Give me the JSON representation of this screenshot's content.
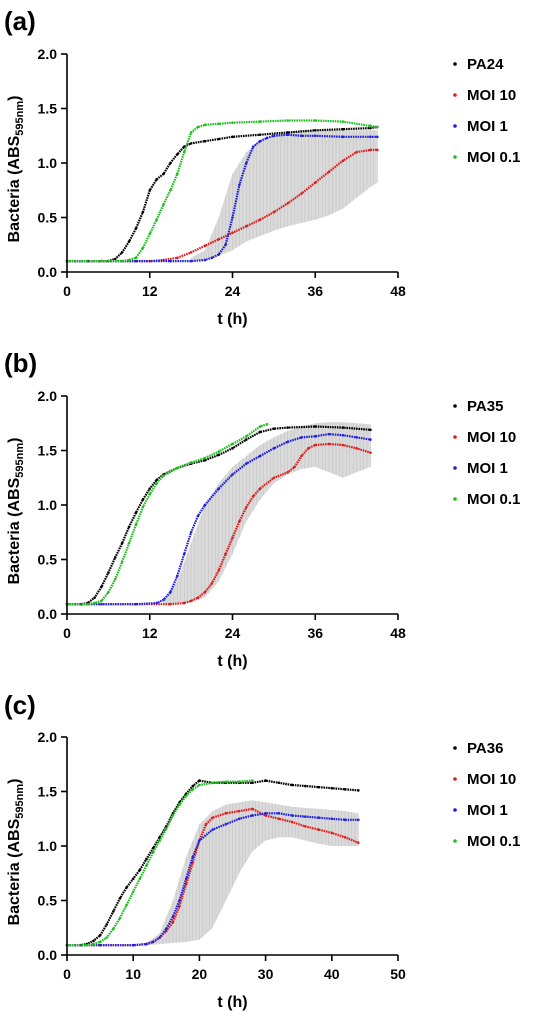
{
  "chart_data": [
    {
      "type": "line",
      "panel_label": "(a)",
      "xlabel": "t (h)",
      "ylabel": "Bacteria (ABS",
      "ylabel_sub": "595nm",
      "ylabel_close": ")",
      "xlim": [
        0,
        48
      ],
      "ylim": [
        0,
        2.0
      ],
      "xticks": [
        0,
        12,
        24,
        36,
        48
      ],
      "xtick_labels": [
        "0",
        "12",
        "24",
        "36",
        "48"
      ],
      "yticks": [
        0,
        0.5,
        1.0,
        1.5,
        2.0
      ],
      "ytick_labels": [
        "0.0",
        "0.5",
        "1.0",
        "1.5",
        "2.0"
      ],
      "grid": false,
      "legend_position": "right",
      "series": [
        {
          "name": "PA24",
          "color": "#000000",
          "x": [
            0,
            3,
            5,
            6,
            7,
            8,
            9,
            10,
            11,
            12,
            13,
            14,
            15,
            16,
            17,
            18,
            20,
            22,
            24,
            28,
            32,
            36,
            40,
            44,
            45
          ],
          "y": [
            0.1,
            0.1,
            0.1,
            0.1,
            0.12,
            0.18,
            0.28,
            0.4,
            0.55,
            0.75,
            0.85,
            0.9,
            1.0,
            1.08,
            1.15,
            1.18,
            1.2,
            1.22,
            1.24,
            1.26,
            1.28,
            1.3,
            1.31,
            1.32,
            1.33
          ]
        },
        {
          "name": "MOI 10",
          "color": "#e01e1e",
          "x": [
            0,
            5,
            10,
            12,
            14,
            16,
            18,
            20,
            22,
            24,
            26,
            28,
            30,
            32,
            34,
            36,
            38,
            40,
            42,
            44,
            45
          ],
          "y": [
            0.1,
            0.1,
            0.1,
            0.1,
            0.11,
            0.13,
            0.18,
            0.24,
            0.3,
            0.36,
            0.42,
            0.48,
            0.55,
            0.63,
            0.72,
            0.82,
            0.92,
            1.02,
            1.1,
            1.12,
            1.12
          ]
        },
        {
          "name": "MOI 1",
          "color": "#2020e0",
          "x": [
            0,
            10,
            15,
            18,
            20,
            21,
            22,
            23,
            24,
            25,
            26,
            27,
            28,
            29,
            30,
            32,
            34,
            36,
            40,
            44,
            45
          ],
          "y": [
            0.1,
            0.1,
            0.1,
            0.1,
            0.11,
            0.13,
            0.16,
            0.25,
            0.5,
            0.8,
            1.0,
            1.15,
            1.2,
            1.23,
            1.25,
            1.26,
            1.25,
            1.25,
            1.24,
            1.24,
            1.24
          ]
        },
        {
          "name": "MOI 0.1",
          "color": "#1ec01e",
          "x": [
            0,
            5,
            8,
            9,
            10,
            11,
            12,
            13,
            14,
            15,
            16,
            17,
            18,
            19,
            20,
            22,
            24,
            28,
            32,
            36,
            40,
            44,
            45
          ],
          "y": [
            0.1,
            0.1,
            0.1,
            0.11,
            0.13,
            0.22,
            0.35,
            0.48,
            0.62,
            0.75,
            0.9,
            1.1,
            1.28,
            1.33,
            1.35,
            1.36,
            1.37,
            1.38,
            1.39,
            1.39,
            1.38,
            1.34,
            1.33
          ]
        }
      ],
      "error_band": {
        "x": [
          18,
          20,
          22,
          24,
          26,
          28,
          30,
          32,
          34,
          36,
          38,
          40,
          42,
          44,
          45
        ],
        "upper": [
          0.13,
          0.2,
          0.5,
          0.9,
          1.1,
          1.2,
          1.25,
          1.28,
          1.3,
          1.3,
          1.3,
          1.3,
          1.3,
          1.3,
          1.3
        ],
        "lower": [
          0.1,
          0.12,
          0.15,
          0.2,
          0.28,
          0.33,
          0.38,
          0.42,
          0.45,
          0.48,
          0.52,
          0.58,
          0.68,
          0.78,
          0.82
        ]
      }
    },
    {
      "type": "line",
      "panel_label": "(b)",
      "xlabel": "t (h)",
      "ylabel": "Bacteria (ABS",
      "ylabel_sub": "595nm",
      "ylabel_close": ")",
      "xlim": [
        0,
        48
      ],
      "ylim": [
        0,
        2.0
      ],
      "xticks": [
        0,
        12,
        24,
        36,
        48
      ],
      "xtick_labels": [
        "0",
        "12",
        "24",
        "36",
        "48"
      ],
      "yticks": [
        0,
        0.5,
        1.0,
        1.5,
        2.0
      ],
      "ytick_labels": [
        "0.0",
        "0.5",
        "1.0",
        "1.5",
        "2.0"
      ],
      "grid": false,
      "legend_position": "right",
      "series": [
        {
          "name": "PA35",
          "color": "#000000",
          "x": [
            0,
            2,
            3,
            4,
            5,
            6,
            7,
            8,
            9,
            10,
            11,
            12,
            13,
            14,
            16,
            18,
            20,
            22,
            24,
            26,
            28,
            30,
            32,
            36,
            40,
            44
          ],
          "y": [
            0.09,
            0.09,
            0.1,
            0.15,
            0.25,
            0.38,
            0.52,
            0.65,
            0.8,
            0.93,
            1.05,
            1.15,
            1.23,
            1.28,
            1.34,
            1.38,
            1.41,
            1.46,
            1.52,
            1.6,
            1.67,
            1.7,
            1.71,
            1.72,
            1.71,
            1.69
          ]
        },
        {
          "name": "MOI 10",
          "color": "#e01e1e",
          "x": [
            0,
            5,
            10,
            15,
            17,
            18,
            19,
            20,
            21,
            22,
            23,
            24,
            25,
            26,
            27,
            28,
            30,
            32,
            33,
            34,
            35,
            36,
            38,
            40,
            42,
            44
          ],
          "y": [
            0.09,
            0.09,
            0.09,
            0.09,
            0.1,
            0.12,
            0.15,
            0.2,
            0.28,
            0.4,
            0.55,
            0.7,
            0.85,
            0.98,
            1.08,
            1.15,
            1.25,
            1.3,
            1.35,
            1.45,
            1.52,
            1.55,
            1.56,
            1.55,
            1.52,
            1.48
          ]
        },
        {
          "name": "MOI 1",
          "color": "#2020e0",
          "x": [
            0,
            5,
            10,
            13,
            14,
            15,
            16,
            17,
            18,
            19,
            20,
            22,
            24,
            26,
            28,
            30,
            32,
            34,
            36,
            38,
            40,
            42,
            44
          ],
          "y": [
            0.09,
            0.09,
            0.09,
            0.1,
            0.13,
            0.2,
            0.35,
            0.55,
            0.75,
            0.9,
            1.0,
            1.15,
            1.28,
            1.38,
            1.45,
            1.52,
            1.58,
            1.62,
            1.63,
            1.65,
            1.64,
            1.62,
            1.6
          ]
        },
        {
          "name": "MOI 0.1",
          "color": "#1ec01e",
          "x": [
            0,
            3,
            4,
            5,
            6,
            7,
            8,
            9,
            10,
            11,
            12,
            13,
            14,
            16,
            18,
            20,
            22,
            24,
            26,
            28,
            29
          ],
          "y": [
            0.09,
            0.09,
            0.1,
            0.12,
            0.2,
            0.32,
            0.48,
            0.65,
            0.82,
            0.98,
            1.1,
            1.2,
            1.27,
            1.34,
            1.39,
            1.43,
            1.49,
            1.56,
            1.63,
            1.72,
            1.74
          ]
        }
      ],
      "error_band": {
        "x": [
          14,
          16,
          18,
          20,
          22,
          24,
          26,
          28,
          30,
          32,
          34,
          36,
          38,
          40,
          42,
          44
        ],
        "upper": [
          0.13,
          0.3,
          0.65,
          1.0,
          1.2,
          1.35,
          1.45,
          1.55,
          1.62,
          1.68,
          1.72,
          1.75,
          1.76,
          1.76,
          1.75,
          1.74
        ],
        "lower": [
          0.09,
          0.1,
          0.11,
          0.15,
          0.3,
          0.55,
          0.85,
          1.05,
          1.2,
          1.28,
          1.33,
          1.35,
          1.3,
          1.25,
          1.3,
          1.35
        ]
      }
    },
    {
      "type": "line",
      "panel_label": "(c)",
      "xlabel": "t (h)",
      "ylabel": "Bacteria (ABS",
      "ylabel_sub": "595nm",
      "ylabel_close": ")",
      "xlim": [
        0,
        50
      ],
      "ylim": [
        0,
        2.0
      ],
      "xticks": [
        0,
        10,
        20,
        30,
        40,
        50
      ],
      "xtick_labels": [
        "0",
        "10",
        "20",
        "30",
        "40",
        "50"
      ],
      "yticks": [
        0,
        0.5,
        1.0,
        1.5,
        2.0
      ],
      "ytick_labels": [
        "0.0",
        "0.5",
        "1.0",
        "1.5",
        "2.0"
      ],
      "grid": false,
      "legend_position": "right",
      "series": [
        {
          "name": "PA36",
          "color": "#000000",
          "x": [
            0,
            2,
            3,
            4,
            5,
            6,
            7,
            8,
            9,
            10,
            11,
            12,
            13,
            14,
            15,
            16,
            17,
            18,
            19,
            20,
            22,
            24,
            26,
            28,
            30,
            32,
            34,
            36,
            38,
            40,
            42,
            44
          ],
          "y": [
            0.09,
            0.09,
            0.1,
            0.13,
            0.18,
            0.28,
            0.4,
            0.52,
            0.62,
            0.7,
            0.78,
            0.88,
            0.98,
            1.08,
            1.18,
            1.3,
            1.4,
            1.48,
            1.55,
            1.6,
            1.58,
            1.58,
            1.58,
            1.58,
            1.6,
            1.58,
            1.56,
            1.55,
            1.54,
            1.53,
            1.52,
            1.51
          ]
        },
        {
          "name": "MOI 10",
          "color": "#e01e1e",
          "x": [
            0,
            5,
            10,
            12,
            13,
            14,
            15,
            16,
            17,
            18,
            19,
            20,
            21,
            22,
            24,
            26,
            28,
            30,
            32,
            34,
            36,
            38,
            40,
            42,
            44
          ],
          "y": [
            0.09,
            0.09,
            0.09,
            0.1,
            0.12,
            0.16,
            0.22,
            0.3,
            0.45,
            0.65,
            0.85,
            1.05,
            1.2,
            1.26,
            1.3,
            1.32,
            1.34,
            1.28,
            1.25,
            1.22,
            1.18,
            1.15,
            1.12,
            1.08,
            1.03
          ]
        },
        {
          "name": "MOI 1",
          "color": "#2020e0",
          "x": [
            0,
            5,
            10,
            12,
            13,
            14,
            15,
            16,
            17,
            18,
            19,
            20,
            22,
            24,
            26,
            28,
            30,
            32,
            34,
            36,
            38,
            40,
            42,
            44
          ],
          "y": [
            0.09,
            0.09,
            0.09,
            0.1,
            0.12,
            0.16,
            0.24,
            0.35,
            0.5,
            0.7,
            0.9,
            1.05,
            1.15,
            1.2,
            1.25,
            1.28,
            1.3,
            1.3,
            1.28,
            1.27,
            1.26,
            1.25,
            1.24,
            1.24
          ]
        },
        {
          "name": "MOI 0.1",
          "color": "#1ec01e",
          "x": [
            0,
            3,
            4,
            5,
            6,
            7,
            8,
            9,
            10,
            11,
            12,
            13,
            14,
            15,
            16,
            17,
            18,
            19,
            20,
            22,
            24,
            26,
            28
          ],
          "y": [
            0.09,
            0.09,
            0.1,
            0.12,
            0.16,
            0.24,
            0.34,
            0.46,
            0.58,
            0.7,
            0.82,
            0.94,
            1.05,
            1.16,
            1.28,
            1.38,
            1.46,
            1.52,
            1.56,
            1.58,
            1.59,
            1.59,
            1.6
          ]
        }
      ],
      "error_band": {
        "x": [
          12,
          14,
          16,
          18,
          20,
          22,
          24,
          26,
          28,
          30,
          32,
          34,
          36,
          38,
          40,
          42,
          44
        ],
        "upper": [
          0.11,
          0.2,
          0.5,
          0.9,
          1.2,
          1.32,
          1.38,
          1.4,
          1.42,
          1.4,
          1.38,
          1.36,
          1.35,
          1.34,
          1.33,
          1.32,
          1.3
        ],
        "lower": [
          0.09,
          0.1,
          0.11,
          0.12,
          0.14,
          0.25,
          0.5,
          0.75,
          0.95,
          1.05,
          1.08,
          1.08,
          1.05,
          1.02,
          1.0,
          1.0,
          1.0
        ]
      }
    }
  ]
}
